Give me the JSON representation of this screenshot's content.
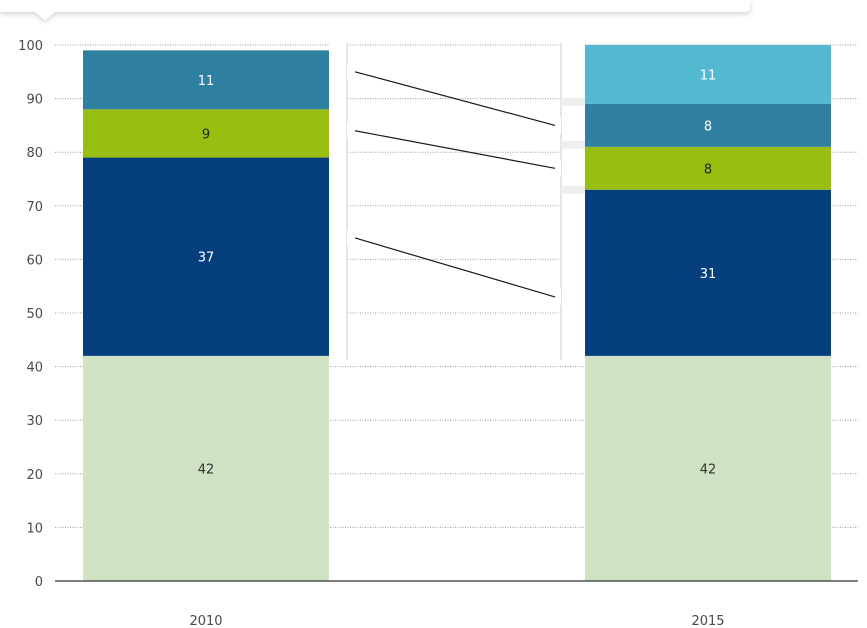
{
  "chart_data": {
    "type": "bar",
    "stacked": true,
    "categories": [
      "2010",
      "2015"
    ],
    "ylim": [
      0,
      100
    ],
    "yticks": [
      0,
      10,
      20,
      30,
      40,
      50,
      60,
      70,
      80,
      90,
      100
    ],
    "grid": true,
    "segments": [
      {
        "values": [
          42,
          42
        ],
        "labels": [
          "42",
          "42"
        ],
        "colors": [
          "#cfe3c4",
          "#cfe3c4"
        ],
        "label_color": "#333333"
      },
      {
        "values": [
          37,
          31
        ],
        "labels": [
          "37",
          "31"
        ],
        "colors": [
          "#053f7d",
          "#053f7d"
        ],
        "label_color": "#ffffff"
      },
      {
        "values": [
          9,
          8
        ],
        "labels": [
          "9",
          "8"
        ],
        "colors": [
          "#98be10",
          "#98be10"
        ],
        "label_color": "#222222"
      },
      {
        "values": [
          0,
          8
        ],
        "labels": [
          "",
          "8"
        ],
        "colors": [
          "#2e7fa0",
          "#2e7fa0"
        ],
        "label_color": "#ffffff"
      },
      {
        "values": [
          11,
          11
        ],
        "labels": [
          "11",
          "11"
        ],
        "colors": [
          "#2e7fa0",
          "#53b9d0"
        ],
        "label_color": "#ffffff"
      }
    ],
    "connectors": [
      [
        95,
        85
      ],
      [
        84,
        77
      ],
      [
        64,
        53
      ]
    ]
  }
}
